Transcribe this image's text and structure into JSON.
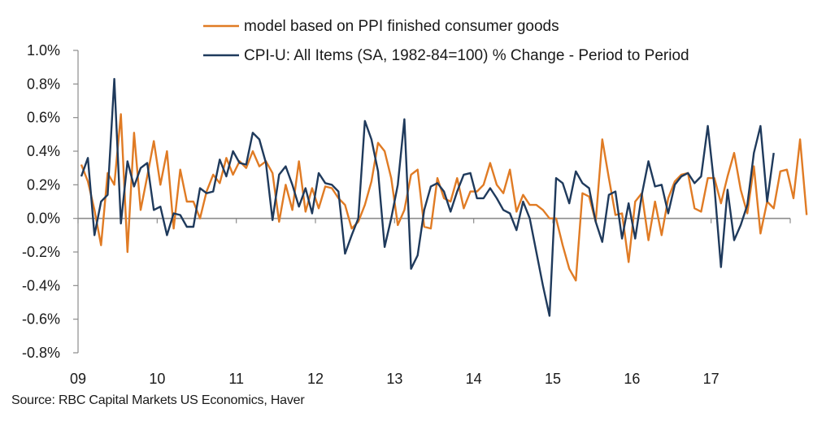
{
  "chart_data": {
    "type": "line",
    "title": "",
    "xlabel": "",
    "ylabel": "",
    "ylim": [
      -0.8,
      1.0
    ],
    "y_ticks": [
      "1.0%",
      "0.8%",
      "0.6%",
      "0.4%",
      "0.2%",
      "0.0%",
      "-0.2%",
      "-0.4%",
      "-0.6%",
      "-0.8%"
    ],
    "y_tick_values": [
      1.0,
      0.8,
      0.6,
      0.4,
      0.2,
      0.0,
      -0.2,
      -0.4,
      -0.6,
      -0.8
    ],
    "x_ticks": [
      "09",
      "10",
      "11",
      "12",
      "13",
      "14",
      "15",
      "16",
      "17"
    ],
    "x_start_year": 2009,
    "frequency": "monthly",
    "grid": false,
    "legend_position": "top-right",
    "series": [
      {
        "name": "model based on PPI finished consumer goods",
        "color": "#E07B24",
        "values": [
          0.32,
          0.22,
          0.05,
          -0.16,
          0.27,
          0.2,
          0.62,
          -0.2,
          0.51,
          0.05,
          0.25,
          0.46,
          0.2,
          0.4,
          -0.06,
          0.29,
          0.1,
          0.1,
          0.0,
          0.16,
          0.26,
          0.21,
          0.36,
          0.26,
          0.34,
          0.3,
          0.4,
          0.31,
          0.34,
          0.27,
          -0.02,
          0.2,
          0.05,
          0.34,
          0.04,
          0.18,
          0.06,
          0.19,
          0.18,
          0.12,
          0.08,
          -0.06,
          -0.02,
          0.08,
          0.22,
          0.45,
          0.4,
          0.24,
          -0.04,
          0.05,
          0.26,
          0.29,
          -0.05,
          -0.06,
          0.24,
          0.12,
          0.1,
          0.24,
          0.06,
          0.16,
          0.16,
          0.2,
          0.33,
          0.2,
          0.15,
          0.29,
          0.04,
          0.14,
          0.08,
          0.08,
          0.05,
          0.0,
          0.0,
          -0.16,
          -0.3,
          -0.37,
          0.15,
          0.13,
          -0.02,
          0.47,
          0.24,
          0.02,
          0.03,
          -0.26,
          0.1,
          0.15,
          -0.13,
          0.1,
          -0.1,
          0.12,
          0.22,
          0.26,
          0.27,
          0.06,
          0.04,
          0.24,
          0.24,
          0.09,
          0.25,
          0.39,
          0.17,
          0.03,
          0.31,
          -0.09,
          0.1,
          0.06,
          0.28,
          0.29,
          0.12,
          0.47,
          0.02
        ]
      },
      {
        "name": "CPI-U: All Items (SA, 1982-84=100) % Change - Period to Period",
        "color": "#1F3A5C",
        "values": [
          0.25,
          0.36,
          -0.1,
          0.1,
          0.14,
          0.83,
          -0.03,
          0.34,
          0.19,
          0.3,
          0.33,
          0.05,
          0.07,
          -0.1,
          0.03,
          0.02,
          -0.05,
          -0.05,
          0.18,
          0.15,
          0.16,
          0.35,
          0.25,
          0.4,
          0.33,
          0.32,
          0.51,
          0.47,
          0.33,
          -0.01,
          0.26,
          0.31,
          0.2,
          0.07,
          0.18,
          0.03,
          0.27,
          0.21,
          0.2,
          0.16,
          -0.21,
          -0.1,
          0.0,
          0.58,
          0.47,
          0.28,
          -0.17,
          0.0,
          0.2,
          0.59,
          -0.3,
          -0.22,
          0.05,
          0.19,
          0.21,
          0.16,
          0.04,
          0.16,
          0.26,
          0.27,
          0.12,
          0.12,
          0.18,
          0.12,
          0.05,
          0.03,
          -0.07,
          0.1,
          0.0,
          -0.2,
          -0.4,
          -0.58,
          0.24,
          0.21,
          0.09,
          0.28,
          0.21,
          0.18,
          -0.02,
          -0.14,
          0.14,
          0.16,
          -0.12,
          0.09,
          -0.12,
          0.14,
          0.34,
          0.19,
          0.2,
          0.03,
          0.2,
          0.25,
          0.27,
          0.21,
          0.25,
          0.55,
          0.19,
          -0.29,
          0.17,
          -0.13,
          -0.04,
          0.08,
          0.39,
          0.55,
          0.1,
          0.39
        ]
      }
    ]
  },
  "source_note": "Source: RBC Capital Markets US Economics, Haver"
}
